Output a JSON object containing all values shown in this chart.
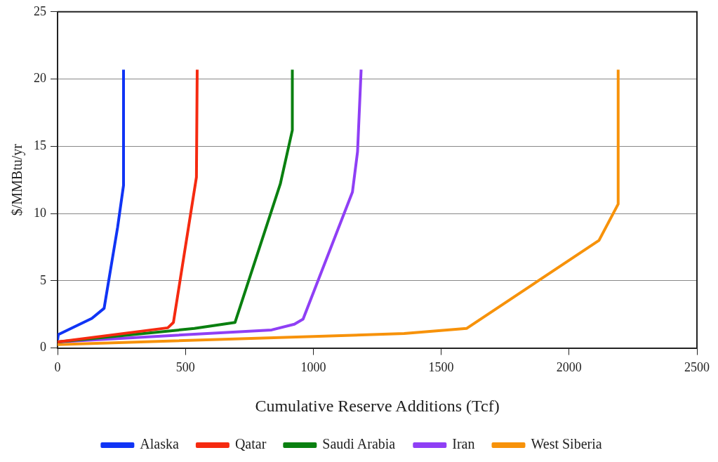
{
  "chart_data": {
    "type": "line",
    "xlabel": "Cumulative Reserve Additions (Tcf)",
    "ylabel": "$/MMBtu/yr",
    "xlim": [
      0,
      2500
    ],
    "xticks": [
      0,
      500,
      1000,
      1500,
      2000,
      2500
    ],
    "ylim": [
      0,
      25
    ],
    "yticks": [
      0,
      5,
      10,
      15,
      20,
      25
    ],
    "grid": "y",
    "legend": "bottom",
    "marker": "none",
    "line_style": "solid",
    "series": [
      {
        "name": "Alaska",
        "color": "#1034f5",
        "x": [
          0,
          3,
          134,
          182,
          235,
          258,
          258
        ],
        "values": [
          0.6,
          1,
          2.2,
          2.95,
          9,
          12.1,
          20.7
        ]
      },
      {
        "name": "Qatar",
        "color": "#f52a10",
        "x": [
          0,
          431,
          453,
          543,
          546
        ],
        "values": [
          0.45,
          1.5,
          1.9,
          12.7,
          20.7
        ]
      },
      {
        "name": "Saudi Arabia",
        "color": "#0a8010",
        "x": [
          0,
          535,
          694,
          871,
          918,
          918
        ],
        "values": [
          0.45,
          1.45,
          1.9,
          12.2,
          16.2,
          20.7
        ]
      },
      {
        "name": "Iran",
        "color": "#8f3ff5",
        "x": [
          0,
          837,
          926,
          960,
          1153,
          1173,
          1187
        ],
        "values": [
          0.45,
          1.34,
          1.77,
          2.15,
          11.6,
          14.6,
          20.7
        ]
      },
      {
        "name": "West Siberia",
        "color": "#f7920a",
        "x": [
          0,
          1355,
          1599,
          2117,
          2192,
          2192
        ],
        "values": [
          0.25,
          1.07,
          1.45,
          8,
          10.7,
          20.7
        ]
      }
    ]
  }
}
